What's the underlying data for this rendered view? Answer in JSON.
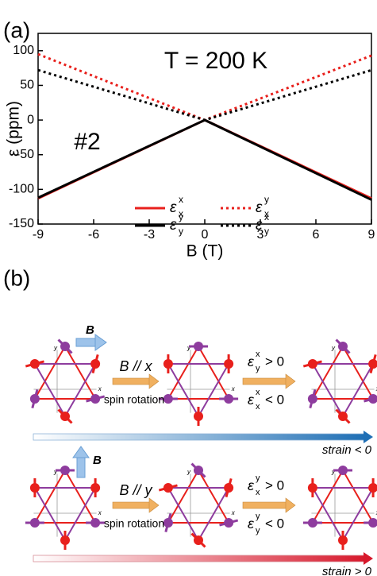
{
  "chart_data": {
    "type": "line",
    "panel_label": "(a)",
    "annotations": [
      "T = 200 K",
      "#2"
    ],
    "xlabel": "B (T)",
    "ylabel": "ε (ppm)",
    "x": [
      -9,
      0,
      9
    ],
    "series": [
      {
        "name": {
          "symbol": "ε",
          "sup": "x",
          "sub": "x"
        },
        "color": "#e8201c",
        "line_style": "solid",
        "values": [
          -113,
          0,
          -113
        ]
      },
      {
        "name": {
          "symbol": "ε",
          "sup": "y",
          "sub": "x"
        },
        "color": "#e8201c",
        "line_style": "dotted",
        "values": [
          95,
          0,
          93
        ]
      },
      {
        "name": {
          "symbol": "ε",
          "sup": "y",
          "sub": "y"
        },
        "color": "#000000",
        "line_style": "solid",
        "values": [
          -112,
          0,
          -115
        ]
      },
      {
        "name": {
          "symbol": "ε",
          "sup": "x",
          "sub": "y"
        },
        "color": "#000000",
        "line_style": "dotted",
        "values": [
          72,
          0,
          72
        ]
      }
    ],
    "xlim": [
      -9,
      9
    ],
    "xticks": [
      -9,
      -6,
      -3,
      0,
      3,
      6,
      9
    ],
    "ylim": [
      -150,
      125
    ],
    "yticks": [
      -150,
      -100,
      -50,
      0,
      50,
      100
    ]
  },
  "panel_b": {
    "label": "(b)",
    "axis_labels": [
      "x",
      "y"
    ],
    "rows": [
      {
        "field": "B",
        "condition": "B // x",
        "process": "spin rotation",
        "relations": [
          {
            "symbol": "ε",
            "sup": "x",
            "sub": "y",
            "rel": "> 0"
          },
          {
            "symbol": "ε",
            "sup": "x",
            "sub": "x",
            "rel": "< 0"
          }
        ],
        "strain": "strain < 0"
      },
      {
        "field": "B",
        "condition": "B // y",
        "process": "spin rotation",
        "relations": [
          {
            "symbol": "ε",
            "sup": "y",
            "sub": "x",
            "rel": "> 0"
          },
          {
            "symbol": "ε",
            "sup": "y",
            "sub": "y",
            "rel": "< 0"
          }
        ],
        "strain": "strain > 0"
      }
    ]
  }
}
